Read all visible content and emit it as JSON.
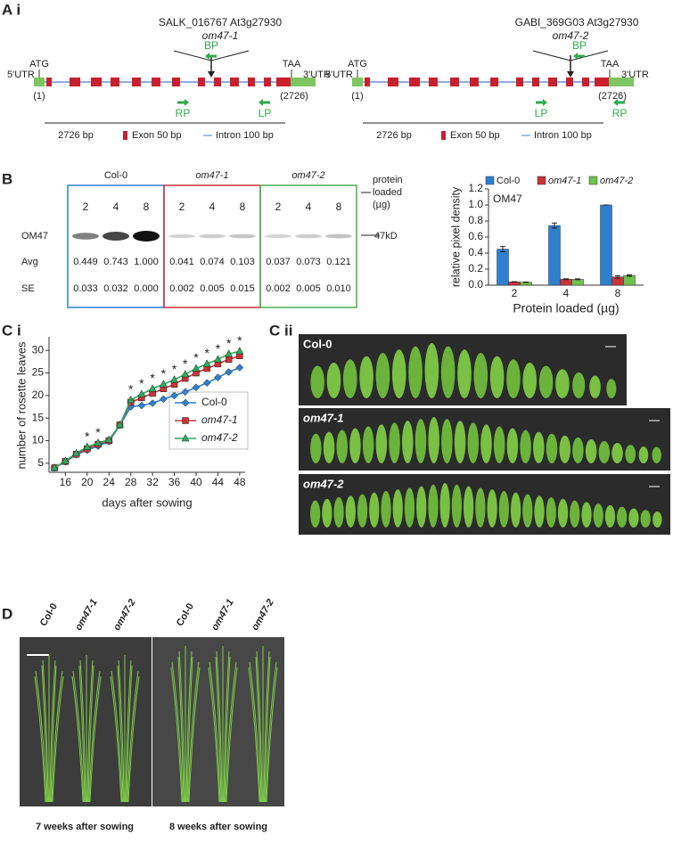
{
  "panel_labels": [
    "A i",
    "B",
    "C i",
    "C ii",
    "D"
  ],
  "gene_diagrams": [
    {
      "line": "SALK_016767 At3g27930",
      "allele": "om47-1",
      "primers": [
        "BP",
        "RP",
        "LP"
      ],
      "start_codon": "ATG",
      "stop_codon": "TAA",
      "utr5": "5'UTR",
      "utr3": "3'UTR",
      "start_pos": "(1)",
      "end_pos": "(2726)",
      "scale": "2726 bp",
      "exon_legend": "Exon 50 bp",
      "intron_legend": "Intron 100 bp"
    },
    {
      "line": "GABI_369G03 At3g27930",
      "allele": "om47-2",
      "primers": [
        "BP",
        "LP",
        "RP"
      ],
      "start_codon": "ATG",
      "stop_codon": "TAA",
      "utr5": "5'UTR",
      "utr3": "3'UTR",
      "start_pos": "(1)",
      "end_pos": "(2726)",
      "scale": "2726 bp",
      "exon_legend": "Exon 50 bp",
      "intron_legend": "Intron 100 bp"
    }
  ],
  "western": {
    "groups": [
      {
        "name": "Col-0",
        "lanes": [
          "2",
          "4",
          "8"
        ],
        "avg": [
          "0.449",
          "0.743",
          "1.000"
        ],
        "se": [
          "0.033",
          "0.032",
          "0.000"
        ]
      },
      {
        "name": "om47-1",
        "lanes": [
          "2",
          "4",
          "8"
        ],
        "avg": [
          "0.041",
          "0.074",
          "0.103"
        ],
        "se": [
          "0.002",
          "0.005",
          "0.015"
        ]
      },
      {
        "name": "om47-2",
        "lanes": [
          "2",
          "4",
          "8"
        ],
        "avg": [
          "0.037",
          "0.073",
          "0.121"
        ],
        "se": [
          "0.002",
          "0.005",
          "0.010"
        ]
      }
    ],
    "row_labels": [
      "OM47",
      "Avg",
      "SE"
    ],
    "loaded_note": [
      "protein",
      "loaded",
      "(µg)"
    ],
    "size_marker": "47kD"
  },
  "chart_data": [
    {
      "type": "bar",
      "inner_label": "OM47",
      "y_label": "relative pixel density",
      "x_label": "Protein loaded (µg)",
      "categories": [
        "2",
        "4",
        "8"
      ],
      "series": [
        {
          "name": "Col-0",
          "color": "#2f7fcf",
          "values": [
            0.449,
            0.743,
            1.0
          ],
          "errors": [
            0.033,
            0.032,
            0.0
          ]
        },
        {
          "name": "om47-1",
          "color": "#c8343a",
          "values": [
            0.041,
            0.074,
            0.103
          ],
          "errors": [
            0.002,
            0.005,
            0.015
          ]
        },
        {
          "name": "om47-2",
          "color": "#6cc24a",
          "values": [
            0.037,
            0.073,
            0.121
          ],
          "errors": [
            0.002,
            0.005,
            0.01
          ]
        }
      ],
      "ylim": [
        0,
        1.2
      ],
      "yticks": [
        {
          "value": 0,
          "label": "0.0"
        },
        0.2,
        0.4,
        0.6,
        0.8,
        {
          "value": 1,
          "label": "1.0"
        },
        1.2
      ],
      "legend": "top"
    },
    {
      "type": "line",
      "y_label": "number of rosette leaves",
      "x_label": "days after sowing",
      "x": [
        14,
        16,
        18,
        20,
        22,
        24,
        26,
        28,
        30,
        32,
        34,
        36,
        38,
        40,
        42,
        44,
        46,
        48
      ],
      "series": [
        {
          "name": "Col-0",
          "color": "#2f7fcf",
          "marker": "diamond",
          "values": [
            4,
            5.3,
            6.9,
            7.9,
            8.8,
            9.8,
            13.4,
            17.5,
            17.8,
            18.3,
            19.2,
            20,
            20.8,
            21.8,
            22.8,
            24,
            25.2,
            26.2
          ]
        },
        {
          "name": "om47-1",
          "color": "#c8343a",
          "marker": "square",
          "values": [
            4,
            5.4,
            7,
            8.2,
            9.2,
            10,
            13.5,
            18.5,
            19.5,
            20.5,
            21.5,
            22.5,
            23.8,
            25,
            26,
            27,
            28,
            28.8
          ]
        },
        {
          "name": "om47-2",
          "color": "#2eaa5e",
          "marker": "triangle",
          "values": [
            4,
            5.5,
            7.2,
            8.6,
            9.5,
            10.2,
            13.5,
            19,
            20.3,
            21.5,
            22.5,
            23.5,
            24.7,
            26,
            27,
            28,
            29.2,
            29.8
          ]
        }
      ],
      "significance": {
        "text": "*",
        "x": [
          20,
          22,
          28,
          30,
          32,
          34,
          36,
          38,
          40,
          42,
          44,
          46,
          48
        ]
      },
      "xlim": [
        13,
        49
      ],
      "xticks": [
        16,
        20,
        24,
        28,
        32,
        36,
        40,
        44,
        48
      ],
      "ylim": [
        3,
        33
      ],
      "yticks": [
        5,
        10,
        15,
        20,
        25,
        30
      ],
      "legend": "lower right"
    }
  ],
  "leaf_panels": [
    "Col-0",
    "om47-1",
    "om47-2"
  ],
  "plant_panel": {
    "columns": [
      "Col-0",
      "om47-1",
      "om47-2",
      "Col-0",
      "om47-1",
      "om47-2"
    ],
    "captions": [
      "7 weeks after sowing",
      "8 weeks after sowing"
    ]
  }
}
